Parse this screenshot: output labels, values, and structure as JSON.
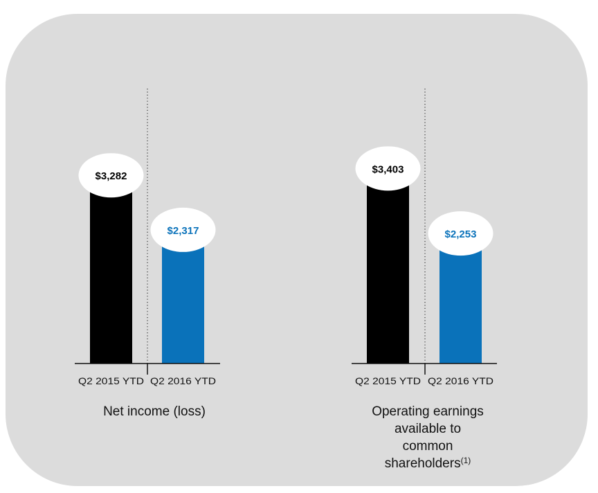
{
  "colors": {
    "panel": "#dcdcdc",
    "bar_2015": "#000000",
    "bar_2016": "#0a72ba",
    "label_2015": "#000000",
    "label_2016": "#0a72ba",
    "bubble": "#ffffff"
  },
  "chart_data": [
    {
      "type": "bar",
      "title": "Net income (loss)",
      "title_superscript": "",
      "categories": [
        "Q2 2015 YTD",
        "Q2 2016 YTD"
      ],
      "values": [
        3282,
        2317
      ],
      "value_labels": [
        "$3,282",
        "$2,317"
      ],
      "grid": false,
      "legend": "none"
    },
    {
      "type": "bar",
      "title": "Operating earnings available to common shareholders",
      "title_lines": [
        "Operating earnings",
        "available to",
        "common",
        "shareholders"
      ],
      "title_superscript": "(1)",
      "categories": [
        "Q2 2015 YTD",
        "Q2 2016 YTD"
      ],
      "values": [
        3403,
        2253
      ],
      "value_labels": [
        "$3,403",
        "$2,253"
      ],
      "grid": false,
      "legend": "none"
    }
  ]
}
